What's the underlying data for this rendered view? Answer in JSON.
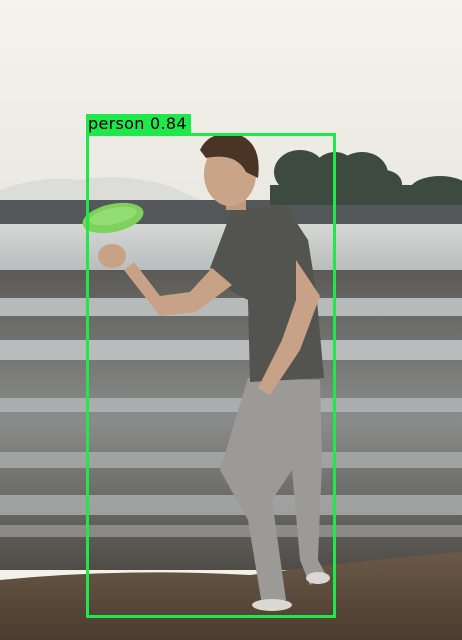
{
  "detections": [
    {
      "label": "person 0.84",
      "class": "person",
      "score": 0.84,
      "color": "#1ee84a"
    }
  ],
  "scene": {
    "description_icon": "beach-photo",
    "colors": {
      "sky": "#f3f2e8",
      "water": "#c9ccca",
      "sand": "#6b5a48",
      "frisbee": "#79cf5a"
    }
  }
}
